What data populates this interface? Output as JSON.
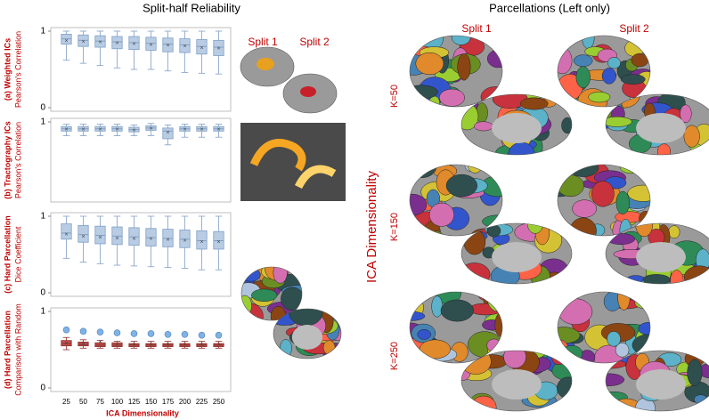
{
  "figure": {
    "left_title": "Split-half Reliability",
    "right_title": "Parcellations (Left only)",
    "reliability_split_1": "Split 1",
    "reliability_split_2": "Split 2",
    "parcellation_split_1": "Split 1",
    "parcellation_split_2": "Split 2",
    "row_axis_label": "ICA Dimensionality",
    "row_labels": [
      "K=50",
      "K=150",
      "K=250"
    ]
  },
  "chart_data": [
    {
      "type": "box",
      "ylabel_bold": "(a) Weighted ICs",
      "ylabel": "Pearson's Correlation",
      "color": "#b8cce4",
      "edge": "#7f9fc4",
      "ylim": [
        0,
        1
      ],
      "yticks": [
        0,
        1
      ],
      "boxes": {
        "low": [
          0.62,
          0.58,
          0.55,
          0.52,
          0.5,
          0.5,
          0.48,
          0.46,
          0.45,
          0.44
        ],
        "q1": [
          0.83,
          0.8,
          0.79,
          0.77,
          0.76,
          0.75,
          0.73,
          0.72,
          0.7,
          0.68
        ],
        "median": [
          0.9,
          0.88,
          0.87,
          0.86,
          0.85,
          0.84,
          0.83,
          0.82,
          0.8,
          0.79
        ],
        "q3": [
          0.96,
          0.95,
          0.94,
          0.93,
          0.93,
          0.92,
          0.91,
          0.9,
          0.89,
          0.88
        ],
        "high": [
          1,
          1,
          1,
          1,
          1,
          1,
          1,
          1,
          1,
          1
        ],
        "mean": [
          0.87,
          0.86,
          0.85,
          0.84,
          0.83,
          0.82,
          0.81,
          0.8,
          0.78,
          0.77
        ]
      }
    },
    {
      "type": "box",
      "ylabel_bold": "(b) Tractography ICs",
      "ylabel": "Pearson's Correlation",
      "color": "#b8cce4",
      "edge": "#7f9fc4",
      "ylim": [
        0,
        1
      ],
      "yticks": [
        1
      ],
      "boxes": {
        "low": [
          0.82,
          0.82,
          0.82,
          0.82,
          0.82,
          0.82,
          0.7,
          0.8,
          0.8,
          0.8
        ],
        "q1": [
          0.88,
          0.88,
          0.88,
          0.88,
          0.87,
          0.89,
          0.78,
          0.88,
          0.88,
          0.88
        ],
        "median": [
          0.91,
          0.91,
          0.91,
          0.91,
          0.9,
          0.92,
          0.88,
          0.91,
          0.91,
          0.91
        ],
        "q3": [
          0.94,
          0.94,
          0.94,
          0.94,
          0.93,
          0.95,
          0.92,
          0.94,
          0.94,
          0.94
        ],
        "high": [
          0.97,
          0.97,
          0.97,
          0.97,
          0.96,
          0.98,
          0.96,
          0.97,
          0.97,
          0.97
        ],
        "mean": [
          0.9,
          0.9,
          0.9,
          0.9,
          0.89,
          0.91,
          0.86,
          0.9,
          0.9,
          0.9
        ]
      }
    },
    {
      "type": "box",
      "ylabel_bold": "(c) Hard Parcellation",
      "ylabel": "Dice Coefficient",
      "color": "#b8cce4",
      "edge": "#7f9fc4",
      "ylim": [
        0,
        1
      ],
      "yticks": [
        0,
        1
      ],
      "boxes": {
        "low": [
          0.45,
          0.4,
          0.38,
          0.36,
          0.35,
          0.34,
          0.33,
          0.32,
          0.3,
          0.3
        ],
        "q1": [
          0.7,
          0.66,
          0.64,
          0.63,
          0.62,
          0.61,
          0.6,
          0.59,
          0.57,
          0.57
        ],
        "median": [
          0.78,
          0.76,
          0.75,
          0.74,
          0.73,
          0.72,
          0.71,
          0.7,
          0.68,
          0.68
        ],
        "q3": [
          0.9,
          0.88,
          0.87,
          0.86,
          0.85,
          0.84,
          0.83,
          0.82,
          0.81,
          0.8
        ],
        "high": [
          1,
          1,
          1,
          1,
          1,
          1,
          1,
          1,
          1,
          1
        ],
        "mean": [
          0.76,
          0.73,
          0.72,
          0.71,
          0.7,
          0.7,
          0.69,
          0.68,
          0.66,
          0.66
        ]
      }
    },
    {
      "type": "box",
      "ylabel_bold": "(d) Hard Parcellation",
      "ylabel": "Comparison with Random",
      "color": "#c0504d",
      "edge": "#8c2f2c",
      "ylim": [
        0,
        1
      ],
      "yticks": [
        0,
        1
      ],
      "xlabel": "ICA Dimensionality",
      "categories": [
        "25",
        "50",
        "75",
        "100",
        "125",
        "150",
        "175",
        "200",
        "225",
        "250"
      ],
      "boxes": {
        "low": [
          0.5,
          0.52,
          0.52,
          0.52,
          0.52,
          0.52,
          0.52,
          0.52,
          0.52,
          0.52
        ],
        "q1": [
          0.55,
          0.55,
          0.54,
          0.54,
          0.54,
          0.54,
          0.54,
          0.54,
          0.54,
          0.54
        ],
        "median": [
          0.58,
          0.57,
          0.56,
          0.56,
          0.56,
          0.56,
          0.56,
          0.56,
          0.56,
          0.56
        ],
        "q3": [
          0.62,
          0.6,
          0.59,
          0.59,
          0.58,
          0.58,
          0.58,
          0.58,
          0.58,
          0.58
        ],
        "high": [
          0.66,
          0.63,
          0.62,
          0.61,
          0.61,
          0.61,
          0.61,
          0.61,
          0.61,
          0.61
        ],
        "mean": [
          0.58,
          0.57,
          0.6,
          0.56,
          0.56,
          0.56,
          0.56,
          0.56,
          0.56,
          0.56
        ]
      },
      "markers": {
        "color": "#7fb2e5",
        "values": [
          0.76,
          0.74,
          0.73,
          0.72,
          0.71,
          0.71,
          0.7,
          0.7,
          0.69,
          0.69
        ]
      }
    }
  ]
}
